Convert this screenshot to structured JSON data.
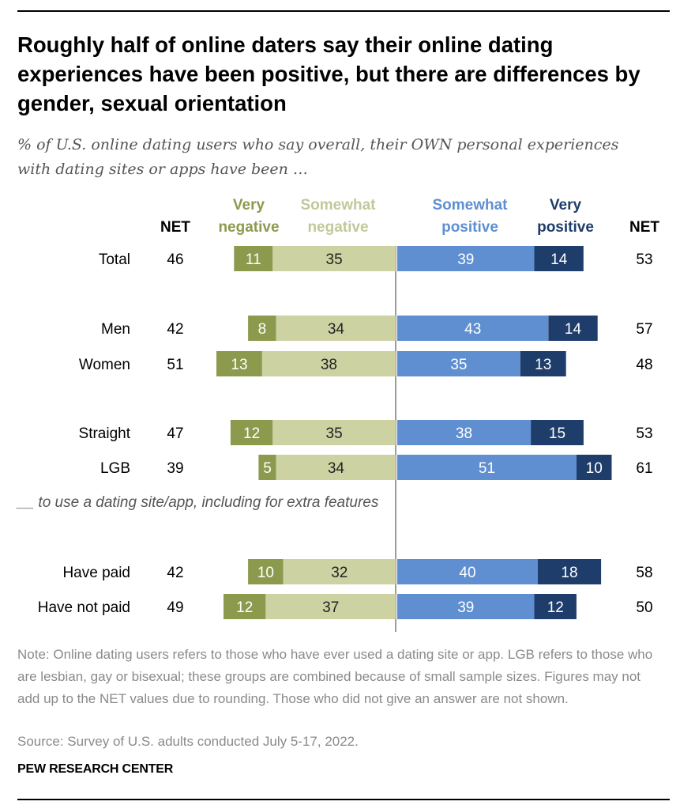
{
  "title": "Roughly half of online daters say their online dating experiences have been positive, but there are differences by gender, sexual orientation",
  "subtitle": "% of U.S. online dating users who say overall, their OWN personal experiences with dating sites or apps have been …",
  "section_label": "__ to use a dating site/app, including for extra features",
  "note": "Note: Online dating users refers to those who have ever used a dating site or app. LGB refers to those who are lesbian, gay or bisexual; these groups are combined because of small sample sizes. Figures may not add up to the NET values due to rounding. Those who did not give an answer are not shown.",
  "source": "Source: Survey of U.S. adults conducted July 5-17, 2022.",
  "brand": "PEW RESEARCH CENTER",
  "colors": {
    "very_negative": "#8c9a4e",
    "somewhat_negative": "#cdd2a2",
    "somewhat_positive": "#5f8fd1",
    "very_positive": "#1f3d6b",
    "very_negative_header": "#8c9a4e",
    "somewhat_negative_header": "#c3c89a",
    "somewhat_positive_header": "#5f8fd1",
    "very_positive_header": "#1f3d6b",
    "divider": "#9c9c9c"
  },
  "chart_data": {
    "type": "bar",
    "orientation": "horizontal",
    "stacked": "diverging",
    "headers": {
      "net_left": "NET",
      "very_negative": [
        "Very",
        "negative"
      ],
      "somewhat_negative": [
        "Somewhat",
        "negative"
      ],
      "somewhat_positive": [
        "Somewhat",
        "positive"
      ],
      "very_positive": [
        "Very",
        "positive"
      ],
      "net_right": "NET"
    },
    "categories": [
      "Total",
      "Men",
      "Women",
      "Straight",
      "LGB",
      "Have paid",
      "Have not paid"
    ],
    "series": [
      {
        "name": "Very negative",
        "values": [
          11,
          8,
          13,
          12,
          5,
          10,
          12
        ]
      },
      {
        "name": "Somewhat negative",
        "values": [
          35,
          34,
          38,
          35,
          34,
          32,
          37
        ]
      },
      {
        "name": "Somewhat positive",
        "values": [
          39,
          43,
          35,
          38,
          51,
          40,
          39
        ]
      },
      {
        "name": "Very positive",
        "values": [
          14,
          14,
          13,
          15,
          10,
          18,
          12
        ]
      }
    ],
    "net_negative": [
      46,
      42,
      51,
      47,
      39,
      42,
      49
    ],
    "net_positive": [
      53,
      57,
      48,
      53,
      61,
      58,
      50
    ]
  }
}
